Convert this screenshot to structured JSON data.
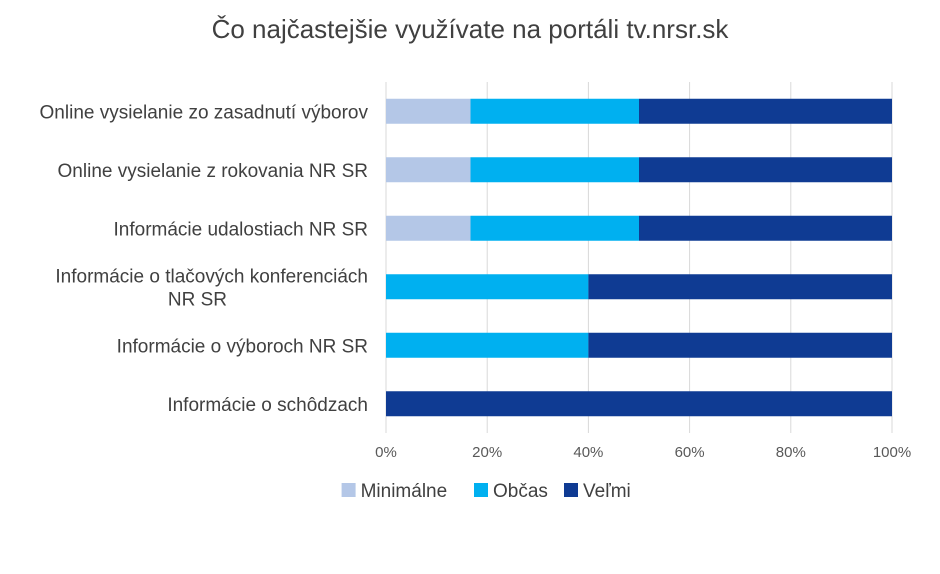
{
  "chart_data": {
    "type": "bar",
    "orientation": "horizontal",
    "stacked": "percent",
    "title": "Čo najčastejšie využívate na portáli tv.nrsr.sk",
    "xlim": [
      0,
      100
    ],
    "x_ticks": [
      "0%",
      "20%",
      "40%",
      "60%",
      "80%",
      "100%"
    ],
    "grid": true,
    "legend_position": "bottom",
    "categories": [
      [
        "Online vysielanie zo zasadnutí výborov"
      ],
      [
        "Online vysielanie z rokovania NR SR"
      ],
      [
        "Informácie  udalostiach NR SR"
      ],
      [
        "Informácie o tlačových konferenciách",
        "NR SR"
      ],
      [
        "Informácie o  výboroch NR SR"
      ],
      [
        "Informácie o schôdzach"
      ]
    ],
    "series": [
      {
        "name": "Minimálne",
        "color": "#b4c7e7",
        "values": [
          16.7,
          16.7,
          16.7,
          0,
          0,
          0
        ]
      },
      {
        "name": "Občas",
        "color": "#00b0f0",
        "values": [
          33.3,
          33.3,
          33.3,
          40,
          40,
          0
        ]
      },
      {
        "name": "Veľmi",
        "color": "#0f3b93",
        "values": [
          50,
          50,
          50,
          60,
          60,
          100
        ]
      }
    ]
  }
}
